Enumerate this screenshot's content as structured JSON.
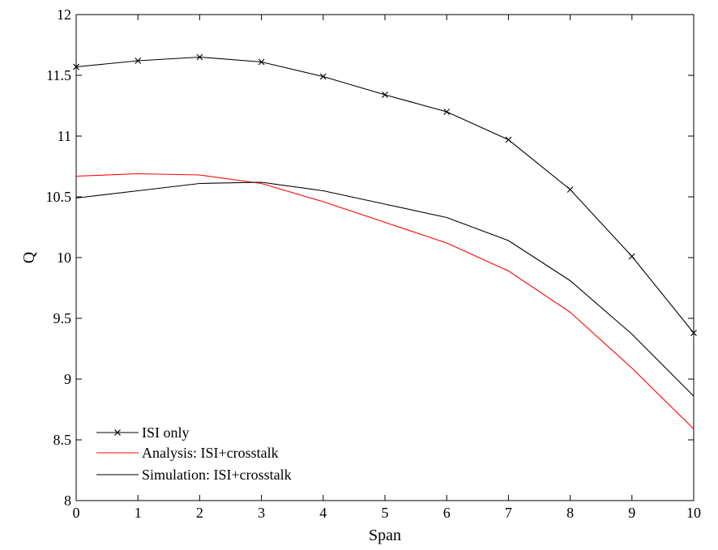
{
  "chart_data": {
    "type": "line",
    "title": "",
    "xlabel": "Span",
    "ylabel": "Q",
    "xlim": [
      0,
      10
    ],
    "ylim": [
      8,
      12
    ],
    "xticks": [
      0,
      1,
      2,
      3,
      4,
      5,
      6,
      7,
      8,
      9,
      10
    ],
    "yticks": [
      8,
      8.5,
      9,
      9.5,
      10,
      10.5,
      11,
      11.5,
      12
    ],
    "xtick_labels": [
      "0",
      "1",
      "2",
      "3",
      "4",
      "5",
      "6",
      "7",
      "8",
      "9",
      "10"
    ],
    "ytick_labels": [
      "8",
      "8.5",
      "9",
      "9.5",
      "10",
      "10.5",
      "11",
      "11.5",
      "12"
    ],
    "grid": false,
    "legend_position": "bottom-left",
    "x": [
      0,
      1,
      2,
      3,
      4,
      5,
      6,
      7,
      8,
      9,
      10
    ],
    "series": [
      {
        "name": "ISI only",
        "color": "#000000",
        "marker": "x",
        "values": [
          11.57,
          11.62,
          11.65,
          11.61,
          11.49,
          11.34,
          11.2,
          10.97,
          10.56,
          10.01,
          9.38
        ]
      },
      {
        "name": "Analysis: ISI+crosstalk",
        "color": "#ff0000",
        "marker": "none",
        "values": [
          10.67,
          10.69,
          10.68,
          10.61,
          10.46,
          10.29,
          10.12,
          9.89,
          9.55,
          9.09,
          8.59
        ]
      },
      {
        "name": "Simulation: ISI+crosstalk",
        "color": "#000000",
        "marker": "none",
        "values": [
          10.49,
          10.55,
          10.61,
          10.62,
          10.55,
          10.44,
          10.33,
          10.14,
          9.81,
          9.37,
          8.86
        ]
      }
    ]
  }
}
